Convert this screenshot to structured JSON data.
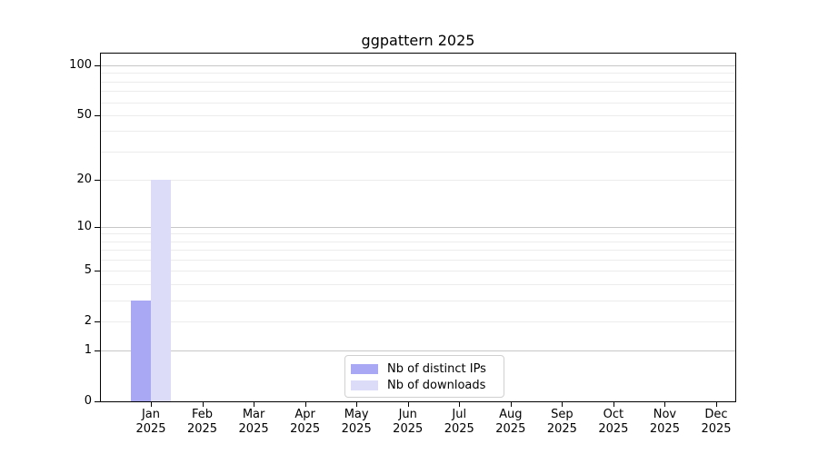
{
  "chart_data": {
    "type": "bar",
    "title": "ggpattern 2025",
    "year": "2025",
    "categories": [
      "Jan",
      "Feb",
      "Mar",
      "Apr",
      "May",
      "Jun",
      "Jul",
      "Aug",
      "Sep",
      "Oct",
      "Nov",
      "Dec"
    ],
    "series": [
      {
        "name": "Nb of distinct IPs",
        "color": "#a8a8f4",
        "values": [
          3,
          0,
          0,
          0,
          0,
          0,
          0,
          0,
          0,
          0,
          0,
          0
        ]
      },
      {
        "name": "Nb of downloads",
        "color": "#dcdcf8",
        "values": [
          20,
          0,
          0,
          0,
          0,
          0,
          0,
          0,
          0,
          0,
          0,
          0
        ]
      }
    ],
    "yscale": "log1p",
    "ylim": [
      0,
      118
    ],
    "yticks": [
      0,
      1,
      2,
      5,
      10,
      20,
      50,
      100
    ],
    "grid": {
      "minor_values": [
        2,
        3,
        4,
        5,
        6,
        7,
        8,
        9,
        20,
        30,
        40,
        50,
        60,
        70,
        80,
        90
      ],
      "major_values": [
        1,
        10,
        100
      ]
    },
    "legend_position": "lower center",
    "xlabel": "",
    "ylabel": ""
  },
  "colors": {
    "background": "#ffffff",
    "axis": "#000000",
    "minor_grid": "#ececec",
    "major_grid": "#c7c7c7",
    "legend_border": "#d0d0d0"
  }
}
